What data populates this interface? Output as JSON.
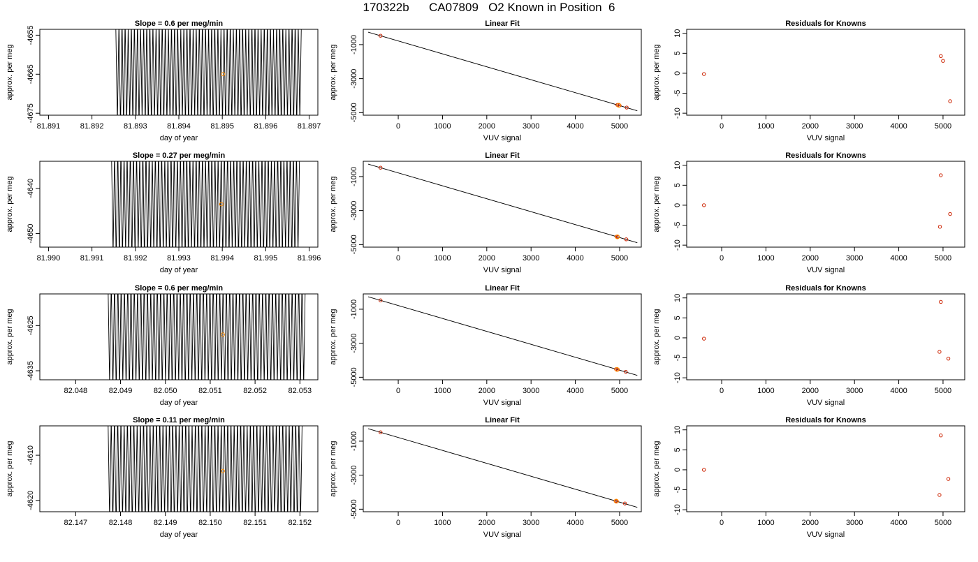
{
  "figure_title": "170322b      CA07809   O2 Known in Position  6",
  "colors": {
    "trace": "#000000",
    "marker": "#ff8c00",
    "point": "#cc2200",
    "frame": "#000000"
  },
  "chart_data": [
    {
      "row": 1,
      "type": "line",
      "title": "Slope =  0.6  per meg/min",
      "xlabel": "day of year",
      "ylabel": "approx. per meg",
      "xlim": [
        81.8908,
        81.8972
      ],
      "ylim": [
        -4675.5,
        -4653.5
      ],
      "xticks": [
        81.891,
        81.892,
        81.893,
        81.894,
        81.895,
        81.896,
        81.897
      ],
      "xtick_labels": [
        "81.891",
        "81.892",
        "81.893",
        "81.894",
        "81.895",
        "81.896",
        "81.897"
      ],
      "yticks": [
        -4675,
        -4665,
        -4655
      ],
      "ytick_labels": [
        "-4675",
        "-4665",
        "-4655"
      ],
      "trace": {
        "x_start": 81.89255,
        "x_end": 81.89682,
        "cycles": 60,
        "center": -4665,
        "amplitude": 11
      },
      "marker": {
        "x": 81.89502,
        "y": -4665
      }
    },
    {
      "row": 1,
      "type": "scatter",
      "title": "Linear Fit",
      "xlabel": "VUV signal",
      "ylabel": "approx. per meg",
      "xlim": [
        -790,
        5490
      ],
      "ylim": [
        -5150,
        -100
      ],
      "xticks": [
        0,
        1000,
        2000,
        3000,
        4000,
        5000
      ],
      "xtick_labels": [
        "0",
        "1000",
        "2000",
        "3000",
        "4000",
        "5000"
      ],
      "yticks": [
        -5000,
        -3000,
        -1000
      ],
      "ytick_labels": [
        "-5000",
        "-3000",
        "-1000"
      ],
      "fit_line": {
        "x": [
          -680,
          5400
        ],
        "y": [
          -265,
          -4890
        ]
      },
      "points": [
        {
          "x": -400,
          "y": -478
        },
        {
          "x": 4950,
          "y": -4545
        },
        {
          "x": 5000,
          "y": -4580
        },
        {
          "x": 5160,
          "y": -4700
        }
      ],
      "highlight": {
        "x": 4980,
        "y": -4565
      }
    },
    {
      "row": 1,
      "type": "scatter",
      "title": "Residuals for Knowns",
      "xlabel": "VUV signal",
      "ylabel": "approx. per meg",
      "xlim": [
        -790,
        5490
      ],
      "ylim": [
        -10.5,
        11
      ],
      "xticks": [
        0,
        1000,
        2000,
        3000,
        4000,
        5000
      ],
      "xtick_labels": [
        "0",
        "1000",
        "2000",
        "3000",
        "4000",
        "5000"
      ],
      "yticks": [
        -10,
        -5,
        0,
        5,
        10
      ],
      "ytick_labels": [
        "-10",
        "-5",
        "0",
        "5",
        "10"
      ],
      "points": [
        {
          "x": -400,
          "y": -0.2
        },
        {
          "x": 4950,
          "y": 4.3
        },
        {
          "x": 5000,
          "y": 3.1
        },
        {
          "x": 5160,
          "y": -7.0
        }
      ]
    },
    {
      "row": 2,
      "type": "line",
      "title": "Slope =  0.27  per meg/min",
      "xlabel": "day of year",
      "ylabel": "approx. per meg",
      "xlim": [
        81.9898,
        81.9962
      ],
      "ylim": [
        -4653,
        -4634
      ],
      "xticks": [
        81.99,
        81.991,
        81.992,
        81.993,
        81.994,
        81.995,
        81.996
      ],
      "xtick_labels": [
        "81.990",
        "81.991",
        "81.992",
        "81.993",
        "81.994",
        "81.995",
        "81.996"
      ],
      "yticks": [
        -4650,
        -4640
      ],
      "ytick_labels": [
        "-4650",
        "-4640"
      ],
      "trace": {
        "x_start": 81.99145,
        "x_end": 81.99578,
        "cycles": 60,
        "center": -4643.5,
        "amplitude": 10
      },
      "marker": {
        "x": 81.99398,
        "y": -4643.5
      }
    },
    {
      "row": 2,
      "type": "scatter",
      "title": "Linear Fit",
      "xlabel": "VUV signal",
      "ylabel": "approx. per meg",
      "xlim": [
        -790,
        5490
      ],
      "ylim": [
        -5150,
        -100
      ],
      "xticks": [
        0,
        1000,
        2000,
        3000,
        4000,
        5000
      ],
      "xtick_labels": [
        "0",
        "1000",
        "2000",
        "3000",
        "4000",
        "5000"
      ],
      "yticks": [
        -5000,
        -3000,
        -1000
      ],
      "ytick_labels": [
        "-5000",
        "-3000",
        "-1000"
      ],
      "fit_line": {
        "x": [
          -680,
          5400
        ],
        "y": [
          -265,
          -4890
        ]
      },
      "points": [
        {
          "x": -400,
          "y": -478
        },
        {
          "x": 4930,
          "y": -4530
        },
        {
          "x": 4960,
          "y": -4550
        },
        {
          "x": 5150,
          "y": -4690
        }
      ],
      "highlight": {
        "x": 4950,
        "y": -4545
      }
    },
    {
      "row": 2,
      "type": "scatter",
      "title": "Residuals for Knowns",
      "xlabel": "VUV signal",
      "ylabel": "approx. per meg",
      "xlim": [
        -790,
        5490
      ],
      "ylim": [
        -10.5,
        11
      ],
      "xticks": [
        0,
        1000,
        2000,
        3000,
        4000,
        5000
      ],
      "xtick_labels": [
        "0",
        "1000",
        "2000",
        "3000",
        "4000",
        "5000"
      ],
      "yticks": [
        -10,
        -5,
        0,
        5,
        10
      ],
      "ytick_labels": [
        "-10",
        "-5",
        "0",
        "5",
        "10"
      ],
      "points": [
        {
          "x": -400,
          "y": 0.0
        },
        {
          "x": 4950,
          "y": 7.5
        },
        {
          "x": 5160,
          "y": -2.2
        },
        {
          "x": 4930,
          "y": -5.4
        }
      ]
    },
    {
      "row": 3,
      "type": "line",
      "title": "Slope =  0.6  per meg/min",
      "xlabel": "day of year",
      "ylabel": "approx. per meg",
      "xlim": [
        82.0472,
        82.0534
      ],
      "ylim": [
        -4637,
        -4618
      ],
      "xticks": [
        82.048,
        82.049,
        82.05,
        82.051,
        82.052,
        82.053
      ],
      "xtick_labels": [
        "82.048",
        "82.049",
        "82.050",
        "82.051",
        "82.052",
        "82.053"
      ],
      "yticks": [
        -4635,
        -4625
      ],
      "ytick_labels": [
        "-4635",
        "-4625"
      ],
      "trace": {
        "x_start": 82.04872,
        "x_end": 82.05312,
        "cycles": 60,
        "center": -4627,
        "amplitude": 10
      },
      "marker": {
        "x": 82.05128,
        "y": -4627
      }
    },
    {
      "row": 3,
      "type": "scatter",
      "title": "Linear Fit",
      "xlabel": "VUV signal",
      "ylabel": "approx. per meg",
      "xlim": [
        -790,
        5490
      ],
      "ylim": [
        -5150,
        -100
      ],
      "xticks": [
        0,
        1000,
        2000,
        3000,
        4000,
        5000
      ],
      "xtick_labels": [
        "0",
        "1000",
        "2000",
        "3000",
        "4000",
        "5000"
      ],
      "yticks": [
        -5000,
        -3000,
        -1000
      ],
      "ytick_labels": [
        "-5000",
        "-3000",
        "-1000"
      ],
      "fit_line": {
        "x": [
          -680,
          5400
        ],
        "y": [
          -265,
          -4890
        ]
      },
      "points": [
        {
          "x": -400,
          "y": -478
        },
        {
          "x": 4920,
          "y": -4525
        },
        {
          "x": 4960,
          "y": -4550
        },
        {
          "x": 5140,
          "y": -4680
        }
      ],
      "highlight": {
        "x": 4940,
        "y": -4538
      }
    },
    {
      "row": 3,
      "type": "scatter",
      "title": "Residuals for Knowns",
      "xlabel": "VUV signal",
      "ylabel": "approx. per meg",
      "xlim": [
        -790,
        5490
      ],
      "ylim": [
        -10.5,
        11
      ],
      "xticks": [
        0,
        1000,
        2000,
        3000,
        4000,
        5000
      ],
      "xtick_labels": [
        "0",
        "1000",
        "2000",
        "3000",
        "4000",
        "5000"
      ],
      "yticks": [
        -10,
        -5,
        0,
        5,
        10
      ],
      "ytick_labels": [
        "-10",
        "-5",
        "0",
        "5",
        "10"
      ],
      "points": [
        {
          "x": -400,
          "y": -0.2
        },
        {
          "x": 4950,
          "y": 9.0
        },
        {
          "x": 4920,
          "y": -3.5
        },
        {
          "x": 5120,
          "y": -5.2
        }
      ]
    },
    {
      "row": 4,
      "type": "line",
      "title": "Slope =  0.11  per meg/min",
      "xlabel": "day of year",
      "ylabel": "approx. per meg",
      "xlim": [
        82.1462,
        82.1524
      ],
      "ylim": [
        -4622.5,
        -4603.5
      ],
      "xticks": [
        82.147,
        82.148,
        82.149,
        82.15,
        82.151,
        82.152
      ],
      "xtick_labels": [
        "82.147",
        "82.148",
        "82.149",
        "82.150",
        "82.151",
        "82.152"
      ],
      "yticks": [
        -4620,
        -4610
      ],
      "ytick_labels": [
        "-4620",
        "-4610"
      ],
      "trace": {
        "x_start": 82.14772,
        "x_end": 82.15205,
        "cycles": 60,
        "center": -4613.5,
        "amplitude": 10
      },
      "marker": {
        "x": 82.15028,
        "y": -4613.5
      }
    },
    {
      "row": 4,
      "type": "scatter",
      "title": "Linear Fit",
      "xlabel": "VUV signal",
      "ylabel": "approx. per meg",
      "xlim": [
        -790,
        5490
      ],
      "ylim": [
        -5150,
        -100
      ],
      "xticks": [
        0,
        1000,
        2000,
        3000,
        4000,
        5000
      ],
      "xtick_labels": [
        "0",
        "1000",
        "2000",
        "3000",
        "4000",
        "5000"
      ],
      "yticks": [
        -5000,
        -3000,
        -1000
      ],
      "ytick_labels": [
        "-5000",
        "-3000",
        "-1000"
      ],
      "fit_line": {
        "x": [
          -680,
          5400
        ],
        "y": [
          -265,
          -4890
        ]
      },
      "points": [
        {
          "x": -400,
          "y": -478
        },
        {
          "x": 4910,
          "y": -4520
        },
        {
          "x": 4940,
          "y": -4540
        },
        {
          "x": 5120,
          "y": -4665
        }
      ],
      "highlight": {
        "x": 4925,
        "y": -4530
      }
    },
    {
      "row": 4,
      "type": "scatter",
      "title": "Residuals for Knowns",
      "xlabel": "VUV signal",
      "ylabel": "approx. per meg",
      "xlim": [
        -790,
        5490
      ],
      "ylim": [
        -10.5,
        11
      ],
      "xticks": [
        0,
        1000,
        2000,
        3000,
        4000,
        5000
      ],
      "xtick_labels": [
        "0",
        "1000",
        "2000",
        "3000",
        "4000",
        "5000"
      ],
      "yticks": [
        -10,
        -5,
        0,
        5,
        10
      ],
      "ytick_labels": [
        "-10",
        "-5",
        "0",
        "5",
        "10"
      ],
      "points": [
        {
          "x": -400,
          "y": 0.0
        },
        {
          "x": 4950,
          "y": 8.6
        },
        {
          "x": 5120,
          "y": -2.3
        },
        {
          "x": 4920,
          "y": -6.3
        }
      ]
    }
  ]
}
